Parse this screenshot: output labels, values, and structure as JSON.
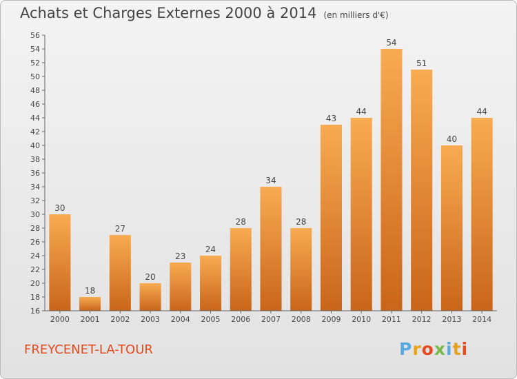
{
  "header": {
    "title": "Achats et Charges Externes 2000 à 2014",
    "unit": "(en milliers d'€)"
  },
  "footer": {
    "commune": "FREYCENET-LA-TOUR",
    "brand_parts": [
      "P",
      "r",
      "o",
      "x",
      "i",
      "t",
      "i"
    ]
  },
  "colors": {
    "bar_top": "#f8ab52",
    "bar_bottom": "#c9651a",
    "title": "#444444",
    "commune": "#e34a1d"
  },
  "chart_data": {
    "type": "bar",
    "title": "Achats et Charges Externes 2000 à 2014",
    "subtitle": "(en milliers d'€)",
    "xlabel": "",
    "ylabel": "",
    "categories": [
      "2000",
      "2001",
      "2002",
      "2003",
      "2004",
      "2005",
      "2006",
      "2007",
      "2008",
      "2009",
      "2010",
      "2011",
      "2012",
      "2013",
      "2014"
    ],
    "values": [
      30,
      18,
      27,
      20,
      23,
      24,
      28,
      34,
      28,
      43,
      44,
      54,
      51,
      40,
      44
    ],
    "ylim": [
      16,
      56
    ],
    "yticks": [
      16,
      18,
      20,
      22,
      24,
      26,
      28,
      30,
      32,
      34,
      36,
      38,
      40,
      42,
      44,
      46,
      48,
      50,
      52,
      54,
      56
    ],
    "grid": false,
    "legend": "none"
  }
}
